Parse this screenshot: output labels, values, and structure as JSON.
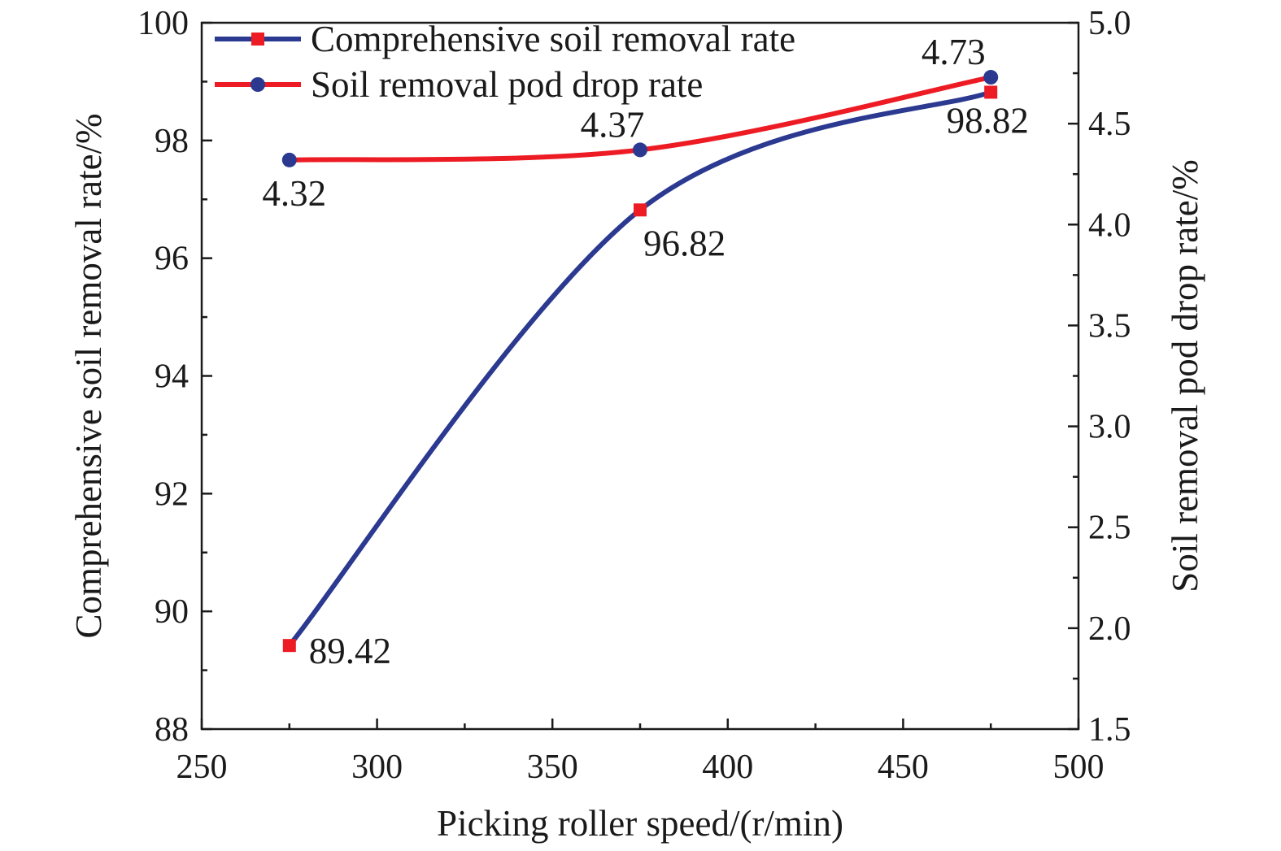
{
  "chart_data": {
    "type": "line",
    "xlabel": "Picking roller speed/(r/min)",
    "ylabel": "Comprehensive soil removal rate/%",
    "y2label": "Soil removal pod drop rate/%",
    "xlim": [
      250,
      500
    ],
    "ylim": [
      88,
      100
    ],
    "y2lim": [
      1.5,
      5.0
    ],
    "x_ticks": [
      "250",
      "300",
      "350",
      "400",
      "450",
      "500"
    ],
    "y_ticks": [
      "88",
      "90",
      "92",
      "94",
      "96",
      "98",
      "100"
    ],
    "y2_ticks": [
      "1.5",
      "2.0",
      "2.5",
      "3.0",
      "3.5",
      "4.0",
      "4.5",
      "5.0"
    ],
    "grid": false,
    "legend_position": "top-left",
    "x": [
      275,
      375,
      475
    ],
    "series": [
      {
        "name": "Comprehensive soil removal rate",
        "axis": "left",
        "values": [
          89.42,
          96.82,
          98.82
        ],
        "labels": [
          "89.42",
          "96.82",
          "98.82"
        ],
        "line_color": "#2b3990",
        "marker": "square",
        "marker_color": "#ed1c24"
      },
      {
        "name": "Soil removal pod drop rate",
        "axis": "right",
        "values": [
          4.32,
          4.37,
          4.73
        ],
        "labels": [
          "4.32",
          "4.37",
          "4.73"
        ],
        "line_color": "#ed1c24",
        "marker": "circle",
        "marker_color": "#2b3990"
      }
    ]
  }
}
